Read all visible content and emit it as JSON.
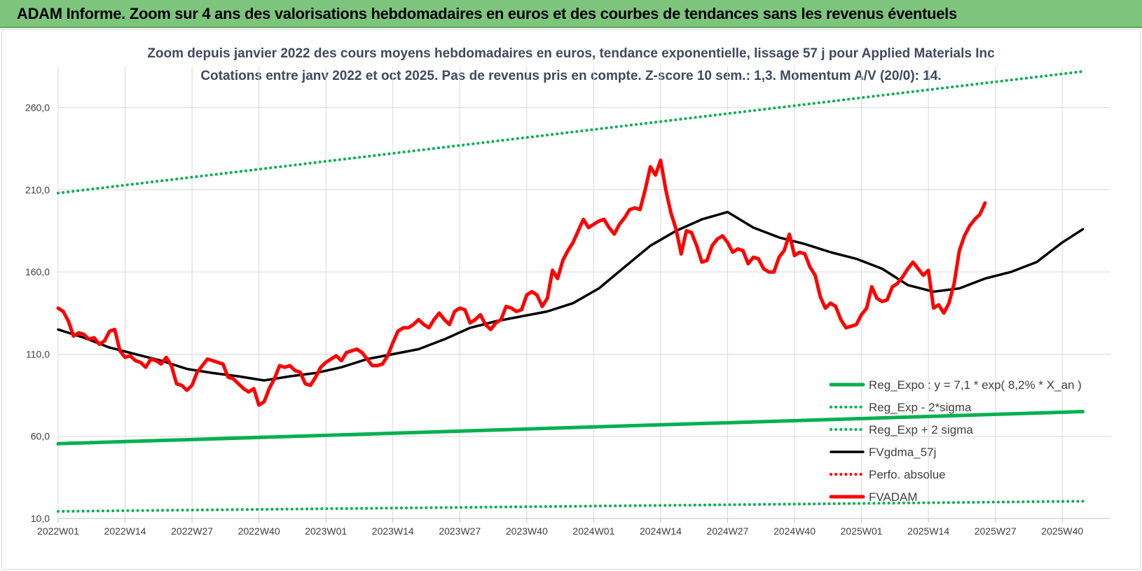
{
  "header": {
    "title": "ADAM Informe. Zoom sur 4 ans des valorisations hebdomadaires en euros et des courbes de tendances sans les revenus éventuels"
  },
  "chart_data": {
    "type": "line",
    "title": "Zoom depuis janvier 2022 des cours moyens hebdomadaires en euros, tendance exponentielle, lissage 57 j pour Applied Materials Inc",
    "subtitle": "Cotations entre janv 2022 et oct 2025. Pas de revenus pris en compte. Z-score 10 sem.: 1,3. Momentum A/V (20/0): 14.",
    "xlabel": "",
    "ylabel": "",
    "ylim": [
      10,
      285
    ],
    "yticks": [
      10,
      60,
      110,
      160,
      210,
      260
    ],
    "ytick_labels": [
      "10,0",
      "60,0",
      "110,0",
      "160,0",
      "210,0",
      "260,0"
    ],
    "grid": true,
    "legend_position": "bottom-right",
    "x_count": 195,
    "x_ticks": [
      {
        "index": 0,
        "label": "2022W01"
      },
      {
        "index": 13,
        "label": "2022W14"
      },
      {
        "index": 26,
        "label": "2022W27"
      },
      {
        "index": 39,
        "label": "2022W40"
      },
      {
        "index": 52,
        "label": "2023W01"
      },
      {
        "index": 65,
        "label": "2023W14"
      },
      {
        "index": 78,
        "label": "2023W27"
      },
      {
        "index": 91,
        "label": "2023W40"
      },
      {
        "index": 104,
        "label": "2024W01"
      },
      {
        "index": 117,
        "label": "2024W14"
      },
      {
        "index": 130,
        "label": "2024W27"
      },
      {
        "index": 143,
        "label": "2024W40"
      },
      {
        "index": 156,
        "label": "2025W01"
      },
      {
        "index": 169,
        "label": "2025W14"
      },
      {
        "index": 182,
        "label": "2025W27"
      },
      {
        "index": 195,
        "label": "2025W40"
      }
    ],
    "series": [
      {
        "name": "Reg_Expo : y = 7,1 * exp( 8,2% *  X_an )",
        "color": "#00b050",
        "style": "solid",
        "points": [
          [
            0,
            55.5
          ],
          [
            199,
            75
          ]
        ]
      },
      {
        "name": "Reg_Exp - 2*sigma",
        "color": "#00b050",
        "style": "dotted",
        "points": [
          [
            0,
            14.3
          ],
          [
            199,
            20.5
          ]
        ]
      },
      {
        "name": "Reg_Exp + 2 sigma",
        "color": "#00b050",
        "style": "dotted",
        "points": [
          [
            0,
            208
          ],
          [
            199,
            282
          ]
        ]
      },
      {
        "name": "FVgdma_57j",
        "color": "#000000",
        "style": "solid",
        "points": [
          [
            0,
            125
          ],
          [
            5,
            120
          ],
          [
            10,
            114
          ],
          [
            15,
            110
          ],
          [
            20,
            106
          ],
          [
            25,
            101
          ],
          [
            30,
            98.5
          ],
          [
            35,
            96.5
          ],
          [
            40,
            94
          ],
          [
            45,
            96.5
          ],
          [
            50,
            98.5
          ],
          [
            55,
            102
          ],
          [
            60,
            107
          ],
          [
            65,
            110
          ],
          [
            70,
            113
          ],
          [
            75,
            119
          ],
          [
            80,
            126
          ],
          [
            85,
            130
          ],
          [
            90,
            133
          ],
          [
            95,
            136
          ],
          [
            100,
            141
          ],
          [
            105,
            150
          ],
          [
            110,
            163
          ],
          [
            115,
            176
          ],
          [
            120,
            185
          ],
          [
            125,
            192
          ],
          [
            130,
            196.5
          ],
          [
            135,
            187
          ],
          [
            140,
            181
          ],
          [
            145,
            177
          ],
          [
            150,
            172
          ],
          [
            155,
            168
          ],
          [
            160,
            162
          ],
          [
            165,
            152
          ],
          [
            170,
            148
          ],
          [
            175,
            150
          ],
          [
            180,
            156
          ],
          [
            185,
            160
          ],
          [
            190,
            166
          ],
          [
            195,
            178
          ],
          [
            199,
            186
          ]
        ]
      },
      {
        "name": "Perfo. absolue",
        "color": "#ff0000",
        "style": "dotted",
        "points": []
      },
      {
        "name": "FVADAM",
        "color": "#ff0000",
        "style": "solid",
        "points": [
          [
            0,
            138
          ],
          [
            1,
            136
          ],
          [
            2,
            130
          ],
          [
            3,
            121
          ],
          [
            4,
            123
          ],
          [
            5,
            122
          ],
          [
            6,
            119
          ],
          [
            7,
            120
          ],
          [
            8,
            116
          ],
          [
            9,
            118
          ],
          [
            10,
            124
          ],
          [
            11,
            125
          ],
          [
            12,
            112
          ],
          [
            13,
            108
          ],
          [
            14,
            109
          ],
          [
            15,
            106
          ],
          [
            16,
            105
          ],
          [
            17,
            102
          ],
          [
            18,
            107
          ],
          [
            19,
            106
          ],
          [
            20,
            104
          ],
          [
            21,
            108
          ],
          [
            22,
            103
          ],
          [
            23,
            92
          ],
          [
            24,
            91
          ],
          [
            25,
            88
          ],
          [
            26,
            91
          ],
          [
            27,
            99
          ],
          [
            28,
            103
          ],
          [
            29,
            107
          ],
          [
            30,
            106
          ],
          [
            31,
            105
          ],
          [
            32,
            104
          ],
          [
            33,
            96
          ],
          [
            34,
            95
          ],
          [
            35,
            92
          ],
          [
            36,
            89
          ],
          [
            37,
            87
          ],
          [
            38,
            89
          ],
          [
            39,
            79
          ],
          [
            40,
            81
          ],
          [
            41,
            89
          ],
          [
            42,
            95
          ],
          [
            43,
            103
          ],
          [
            44,
            102
          ],
          [
            45,
            103
          ],
          [
            46,
            100
          ],
          [
            47,
            99
          ],
          [
            48,
            92
          ],
          [
            49,
            91
          ],
          [
            50,
            96
          ],
          [
            51,
            102
          ],
          [
            52,
            105
          ],
          [
            53,
            107
          ],
          [
            54,
            109
          ],
          [
            55,
            106
          ],
          [
            56,
            111
          ],
          [
            57,
            112
          ],
          [
            58,
            113
          ],
          [
            59,
            111
          ],
          [
            60,
            107
          ],
          [
            61,
            103
          ],
          [
            62,
            103
          ],
          [
            63,
            104
          ],
          [
            64,
            109
          ],
          [
            65,
            117
          ],
          [
            66,
            124
          ],
          [
            67,
            126
          ],
          [
            68,
            126
          ],
          [
            69,
            128
          ],
          [
            70,
            131
          ],
          [
            71,
            128
          ],
          [
            72,
            126
          ],
          [
            73,
            131
          ],
          [
            74,
            135
          ],
          [
            75,
            131
          ],
          [
            76,
            128
          ],
          [
            77,
            136
          ],
          [
            78,
            138
          ],
          [
            79,
            137
          ],
          [
            80,
            129
          ],
          [
            81,
            131
          ],
          [
            82,
            134
          ],
          [
            83,
            128
          ],
          [
            84,
            125
          ],
          [
            85,
            129
          ],
          [
            86,
            131
          ],
          [
            87,
            139
          ],
          [
            88,
            138
          ],
          [
            89,
            136
          ],
          [
            90,
            137
          ],
          [
            91,
            146
          ],
          [
            92,
            148
          ],
          [
            93,
            146
          ],
          [
            94,
            139
          ],
          [
            95,
            144
          ],
          [
            96,
            161
          ],
          [
            97,
            156
          ],
          [
            98,
            167
          ],
          [
            99,
            173
          ],
          [
            100,
            178
          ],
          [
            101,
            185
          ],
          [
            102,
            192
          ],
          [
            103,
            187
          ],
          [
            104,
            189
          ],
          [
            105,
            191
          ],
          [
            106,
            192
          ],
          [
            107,
            187
          ],
          [
            108,
            183
          ],
          [
            109,
            189
          ],
          [
            110,
            193
          ],
          [
            111,
            198
          ],
          [
            112,
            199
          ],
          [
            113,
            198
          ],
          [
            114,
            210
          ],
          [
            115,
            224
          ],
          [
            116,
            219
          ],
          [
            117,
            228
          ],
          [
            118,
            210
          ],
          [
            119,
            196
          ],
          [
            120,
            186
          ],
          [
            121,
            171
          ],
          [
            122,
            185
          ],
          [
            123,
            184
          ],
          [
            124,
            176
          ],
          [
            125,
            166
          ],
          [
            126,
            167
          ],
          [
            127,
            176
          ],
          [
            128,
            180
          ],
          [
            129,
            182
          ],
          [
            130,
            178
          ],
          [
            131,
            172
          ],
          [
            132,
            174
          ],
          [
            133,
            173
          ],
          [
            134,
            165
          ],
          [
            135,
            169
          ],
          [
            136,
            168
          ],
          [
            137,
            162
          ],
          [
            138,
            160
          ],
          [
            139,
            160
          ],
          [
            140,
            169
          ],
          [
            141,
            173
          ],
          [
            142,
            183
          ],
          [
            143,
            170
          ],
          [
            144,
            172
          ],
          [
            145,
            171
          ],
          [
            146,
            163
          ],
          [
            147,
            158
          ],
          [
            148,
            145
          ],
          [
            149,
            138
          ],
          [
            150,
            141
          ],
          [
            151,
            139
          ],
          [
            152,
            131
          ],
          [
            153,
            126
          ],
          [
            154,
            127
          ],
          [
            155,
            128
          ],
          [
            156,
            134
          ],
          [
            157,
            138
          ],
          [
            158,
            151
          ],
          [
            159,
            144
          ],
          [
            160,
            142
          ],
          [
            161,
            143
          ],
          [
            162,
            151
          ],
          [
            163,
            153
          ],
          [
            164,
            157
          ],
          [
            165,
            162
          ],
          [
            166,
            166
          ],
          [
            167,
            162
          ],
          [
            168,
            158
          ],
          [
            169,
            161
          ],
          [
            170,
            138
          ],
          [
            171,
            140
          ],
          [
            172,
            135
          ],
          [
            173,
            141
          ],
          [
            174,
            153
          ],
          [
            175,
            173
          ],
          [
            176,
            182
          ],
          [
            177,
            188
          ],
          [
            178,
            192
          ],
          [
            179,
            195
          ],
          [
            180,
            202
          ]
        ]
      }
    ]
  }
}
